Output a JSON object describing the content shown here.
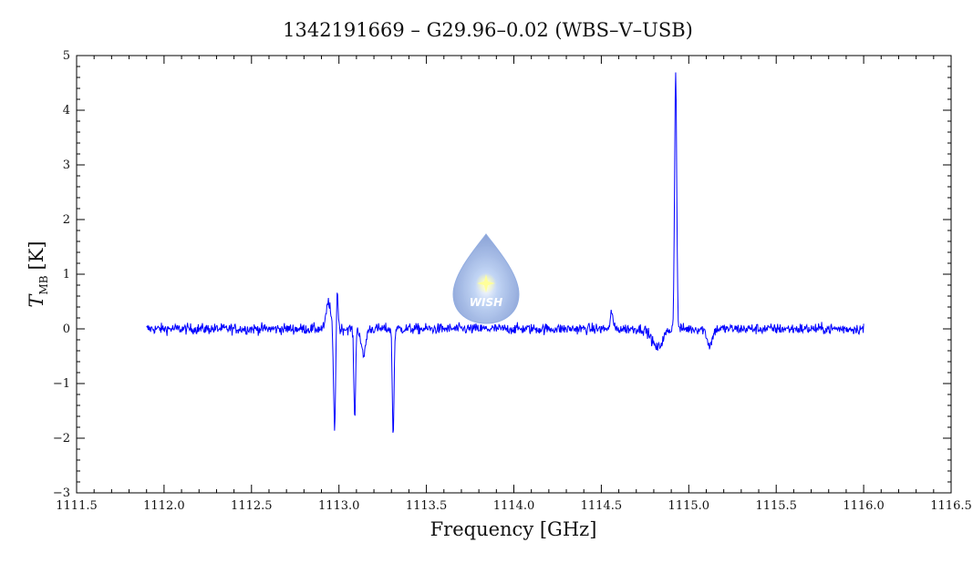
{
  "chart_data": {
    "type": "line",
    "title": "1342191669 – G29.96–0.02 (WBS–V–USB)",
    "xlabel": "Frequency [GHz]",
    "ylabel_main": "T",
    "ylabel_sub": "MB",
    "ylabel_unit": "[K]",
    "xlim": [
      1111.5,
      1116.5
    ],
    "ylim": [
      -3,
      5
    ],
    "x_ticks": [
      "1111.5",
      "1112.0",
      "1112.5",
      "1113.0",
      "1113.5",
      "1114.0",
      "1114.5",
      "1115.0",
      "1115.5",
      "1116.0",
      "1116.5"
    ],
    "y_ticks": [
      "−3",
      "−2",
      "−1",
      "0",
      "1",
      "2",
      "3",
      "4",
      "5"
    ],
    "grid": false,
    "series": [
      {
        "color": "#0000ff",
        "x_range": [
          1111.9,
          1116.0
        ],
        "baseline": 0.0,
        "noise_rms": 0.07,
        "features": [
          {
            "x": 1112.94,
            "value": 0.5
          },
          {
            "x": 1112.975,
            "value": -1.8
          },
          {
            "x": 1112.99,
            "value": 0.75
          },
          {
            "x": 1113.09,
            "value": -1.65
          },
          {
            "x": 1113.14,
            "value": -0.5
          },
          {
            "x": 1113.31,
            "value": -1.95
          },
          {
            "x": 1114.56,
            "value": 0.35
          },
          {
            "x": 1114.82,
            "value": -0.35
          },
          {
            "x": 1114.925,
            "value": 4.7
          },
          {
            "x": 1115.12,
            "value": -0.3
          }
        ]
      }
    ]
  },
  "watermark": {
    "text": "WISH"
  }
}
